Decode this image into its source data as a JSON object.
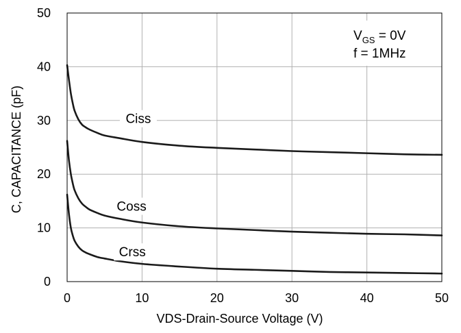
{
  "chart_data": {
    "type": "line",
    "title": "",
    "xlabel": "VDS-Drain-Source  Voltage  (V)",
    "ylabel": "C, CAPACITANCE  (pF)",
    "xlim": [
      0,
      50
    ],
    "ylim": [
      0,
      50
    ],
    "x_ticks": [
      "0",
      "10",
      "20",
      "30",
      "40",
      "50"
    ],
    "y_ticks": [
      "0",
      "10",
      "20",
      "30",
      "40",
      "50"
    ],
    "grid": true,
    "legend": "none",
    "annotation": {
      "vgs_prefix": "V",
      "vgs_sub": "GS",
      "vgs_value": " = 0V",
      "freq": "f = 1MHz"
    },
    "series": [
      {
        "name": "Ciss",
        "x": [
          0,
          0.25,
          0.5,
          0.75,
          1,
          1.5,
          2,
          2.5,
          3,
          4,
          5,
          7,
          10,
          15,
          20,
          25,
          30,
          35,
          40,
          45,
          50
        ],
        "y": [
          40.3,
          37.5,
          35,
          33.2,
          31.8,
          30.2,
          29.2,
          28.7,
          28.3,
          27.7,
          27.2,
          26.7,
          26.0,
          25.3,
          24.9,
          24.6,
          24.3,
          24.1,
          23.9,
          23.7,
          23.6
        ]
      },
      {
        "name": "Coss",
        "x": [
          0,
          0.25,
          0.5,
          0.75,
          1,
          1.5,
          2,
          2.5,
          3,
          4,
          5,
          7,
          10,
          15,
          20,
          25,
          30,
          35,
          40,
          45,
          50
        ],
        "y": [
          26.2,
          22.5,
          20,
          18.3,
          17,
          15.5,
          14.5,
          13.9,
          13.4,
          12.8,
          12.3,
          11.7,
          11.0,
          10.3,
          9.9,
          9.6,
          9.3,
          9.1,
          8.9,
          8.8,
          8.6
        ]
      },
      {
        "name": "Crss",
        "x": [
          0,
          0.25,
          0.5,
          0.75,
          1,
          1.5,
          2,
          2.5,
          3,
          4,
          5,
          7,
          10,
          15,
          20,
          25,
          30,
          35,
          40,
          45,
          50
        ],
        "y": [
          16.2,
          12.5,
          10,
          8.6,
          7.6,
          6.5,
          5.8,
          5.4,
          5.1,
          4.6,
          4.3,
          3.8,
          3.3,
          2.8,
          2.4,
          2.2,
          2.0,
          1.8,
          1.7,
          1.6,
          1.5
        ]
      }
    ],
    "colors": {
      "line": "#1a1a1a",
      "grid": "#b0b0b0",
      "axis": "#000000",
      "text": "#000000"
    }
  }
}
